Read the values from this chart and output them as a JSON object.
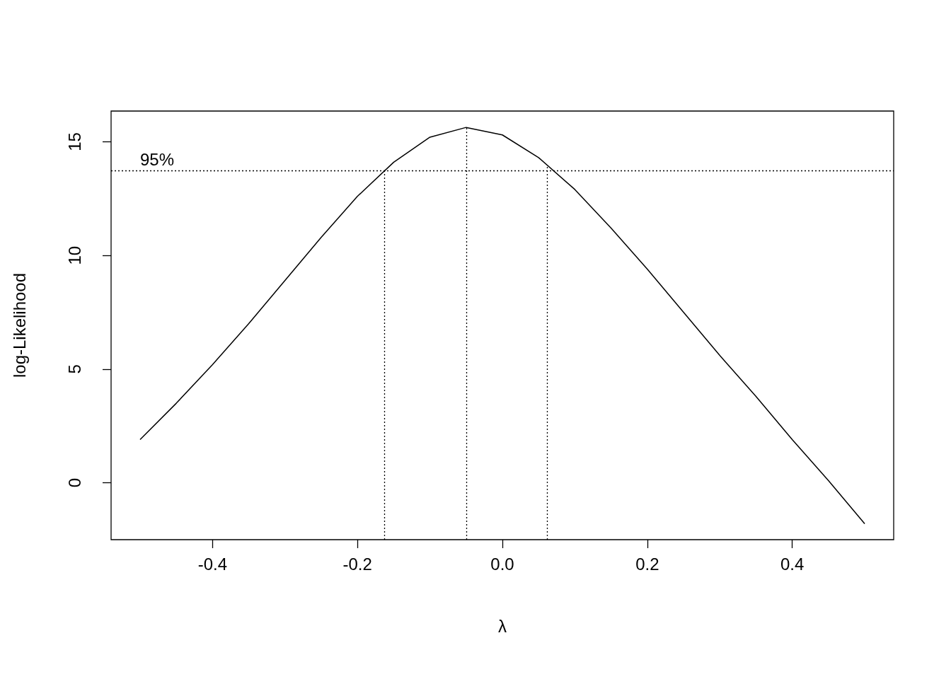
{
  "chart_data": {
    "type": "line",
    "xlabel": "λ",
    "ylabel": "log-Likelihood",
    "x": [
      -0.5,
      -0.45,
      -0.4,
      -0.35,
      -0.3,
      -0.25,
      -0.2,
      -0.15,
      -0.1,
      -0.05,
      0,
      0.05,
      0.1,
      0.15,
      0.2,
      0.25,
      0.3,
      0.35,
      0.4,
      0.45,
      0.5
    ],
    "series": [
      {
        "color": "#000000",
        "values": [
          1.9,
          3.5,
          5.2,
          7.0,
          8.9,
          10.8,
          12.6,
          14.1,
          15.2,
          15.63,
          15.3,
          14.3,
          12.9,
          11.2,
          9.4,
          7.5,
          5.6,
          3.8,
          1.9,
          0.1,
          -1.8
        ]
      }
    ],
    "xlim": [
      -0.54,
      0.54
    ],
    "xticks": [
      -0.4,
      -0.2,
      {
        "value": 0,
        "label": "0.0"
      },
      0.2,
      0.4
    ],
    "ylim": [
      -2.5,
      16.35
    ],
    "yticks": [
      0,
      5,
      10,
      15
    ],
    "annotations": [
      {
        "text": "95%",
        "x": -0.5,
        "y": 13.73
      }
    ],
    "ref_lines": [
      {
        "axis": "y",
        "value": 13.73,
        "line_style": "dotted",
        "color": "#000000"
      },
      {
        "axis": "x",
        "value": -0.163,
        "line_style": "dotted",
        "color": "#000000"
      },
      {
        "axis": "x",
        "value": -0.05,
        "line_style": "dotted",
        "color": "#000000"
      },
      {
        "axis": "x",
        "value": 0.062,
        "line_style": "dotted",
        "color": "#000000"
      }
    ],
    "grid": false,
    "marker": "none",
    "line_style": "solid"
  }
}
